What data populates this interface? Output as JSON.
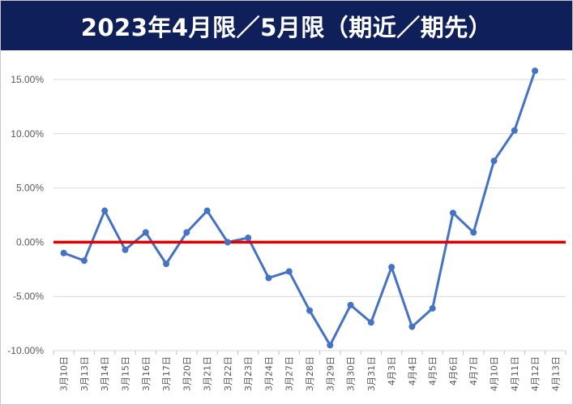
{
  "chart_data": {
    "type": "line",
    "title": "2023年4月限／5月限（期近／期先）",
    "xlabel": "",
    "ylabel": "",
    "ylim": [
      -0.1,
      0.15
    ],
    "y_ticks": [
      "15.00%",
      "10.00%",
      "5.00%",
      "0.00%",
      "-5.00%",
      "-10.00%"
    ],
    "y_tick_values": [
      0.15,
      0.1,
      0.05,
      0.0,
      -0.05,
      -0.1
    ],
    "grid": "horizontal",
    "legend": "none",
    "categories": [
      "3月10日",
      "3月13日",
      "3月14日",
      "3月15日",
      "3月16日",
      "3月17日",
      "3月20日",
      "3月21日",
      "3月22日",
      "3月23日",
      "3月24日",
      "3月27日",
      "3月28日",
      "3月29日",
      "3月30日",
      "3月31日",
      "4月3日",
      "4月4日",
      "4月5日",
      "4月6日",
      "4月7日",
      "4月10日",
      "4月11日",
      "4月12日",
      "4月13日"
    ],
    "series": [
      {
        "values": [
          -0.01,
          -0.017,
          0.029,
          -0.007,
          0.009,
          -0.02,
          0.009,
          0.029,
          0.0,
          0.004,
          -0.033,
          -0.027,
          -0.063,
          -0.095,
          -0.058,
          -0.074,
          -0.023,
          -0.078,
          -0.061,
          0.027,
          0.009,
          0.075,
          0.103,
          0.158,
          null
        ],
        "color": "#4472c4"
      }
    ],
    "reference_line": {
      "value": 0.0,
      "color": "#e00000"
    }
  },
  "colors": {
    "title_bg": "#0e1f5a",
    "title_text": "#ffffff",
    "line": "#4472c4",
    "zero_line": "#e00000",
    "grid": "#d9d9d9"
  }
}
